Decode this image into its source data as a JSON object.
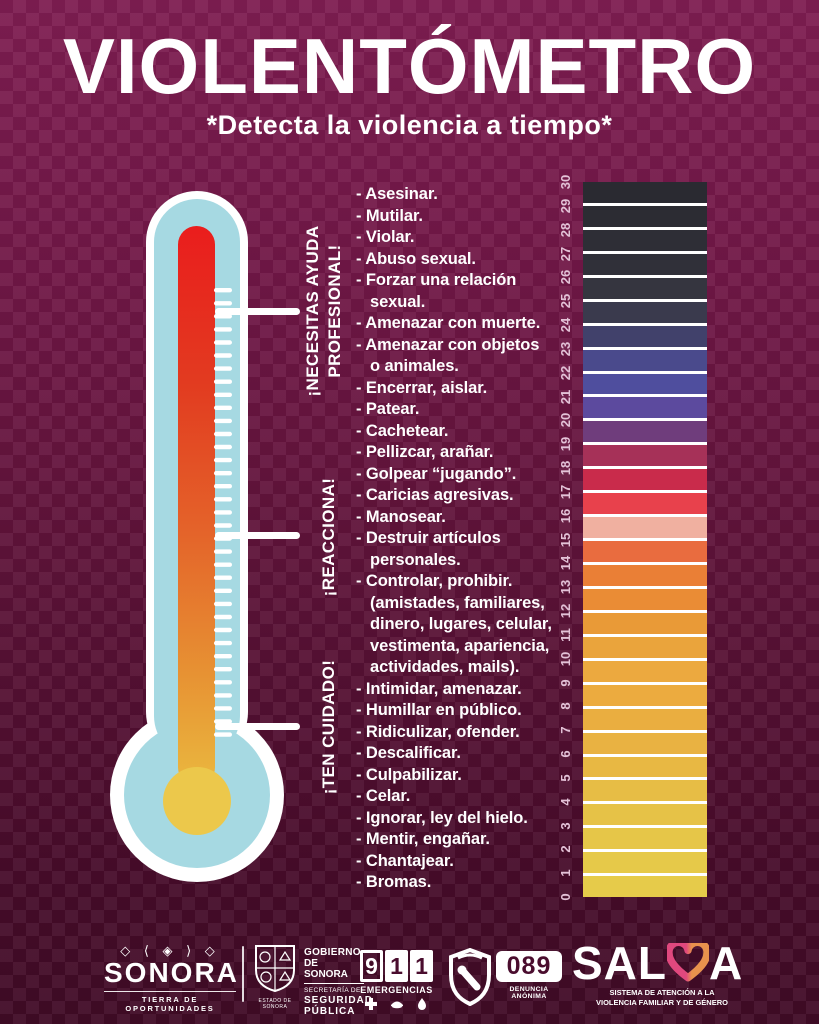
{
  "title": "VIOLENTÓMETRO",
  "subtitle": "*Detecta la violencia a tiempo*",
  "zones": [
    {
      "label_lines": [
        "¡NECESITAS AYUDA",
        "PROFESIONAL!"
      ]
    },
    {
      "label_lines": [
        "¡REACCIONA!"
      ]
    },
    {
      "label_lines": [
        "¡TEN CUIDADO!"
      ]
    }
  ],
  "behaviors": [
    [
      "- Asesinar."
    ],
    [
      "- Mutilar."
    ],
    [
      "- Violar."
    ],
    [
      "- Abuso sexual."
    ],
    [
      "- Forzar una relación",
      "sexual."
    ],
    [
      "- Amenazar con muerte."
    ],
    [
      "- Amenazar con objetos",
      "o animales."
    ],
    [
      "- Encerrar, aislar."
    ],
    [
      "- Patear."
    ],
    [
      "- Cachetear."
    ],
    [
      "- Pellizcar, arañar."
    ],
    [
      "- Golpear “jugando”."
    ],
    [
      "- Caricias agresivas."
    ],
    [
      "- Manosear."
    ],
    [
      "- Destruir artículos",
      "personales."
    ],
    [
      "- Controlar, prohibir.",
      "(amistades, familiares,",
      "dinero, lugares, celular,",
      "vestimenta, apariencia,",
      "actividades, mails)."
    ],
    [
      "- Intimidar, amenazar."
    ],
    [
      "- Humillar en público."
    ],
    [
      "- Ridiculizar, ofender."
    ],
    [
      "- Descalificar."
    ],
    [
      "- Culpabilizar."
    ],
    [
      "- Celar."
    ],
    [
      "- Ignorar, ley del hielo."
    ],
    [
      "- Mentir, engañar."
    ],
    [
      "- Chantajear."
    ],
    [
      "- Bromas."
    ]
  ],
  "scale": {
    "min": 0,
    "max": 30,
    "numbers": [
      "0",
      "1",
      "2",
      "3",
      "4",
      "5",
      "6",
      "7",
      "8",
      "9",
      "10",
      "11",
      "12",
      "13",
      "14",
      "15",
      "16",
      "17",
      "18",
      "19",
      "20",
      "21",
      "22",
      "23",
      "24",
      "25",
      "26",
      "27",
      "28",
      "29",
      "30"
    ],
    "segment_colors_bottom_to_top": [
      "#e6cb4a",
      "#e6c949",
      "#e6c648",
      "#e6c247",
      "#e7bd45",
      "#e8b843",
      "#e9b242",
      "#eaae40",
      "#ecab3f",
      "#eca93f",
      "#eaa43c",
      "#e99a37",
      "#ea8c35",
      "#ea7f36",
      "#e96c3f",
      "#f0b0a0",
      "#e8414c",
      "#c92b4b",
      "#a63158",
      "#6f3d7c",
      "#5c4a9e",
      "#4f4e9e",
      "#4a4a8c",
      "#41416b",
      "#3a3a4d",
      "#35353f",
      "#303039",
      "#2e2e36",
      "#2c2c33",
      "#2a2a31"
    ]
  },
  "thermometer_colors": {
    "tube": "#a6d9e2",
    "liquid_top": "#ea1d1d",
    "liquid_bottom": "#eab83f",
    "bulb": "#ecc84b",
    "outline": "#ffffff"
  },
  "colors": {
    "background_top": "#7e1d51",
    "background_bottom": "#400b26",
    "text": "#ffffff",
    "scale_number_color": "#e3c2d7",
    "salva_heart_pink": "#e0487e",
    "salva_heart_orange": "#e8924d"
  },
  "footer": {
    "sonora": {
      "glyphs": "◇ ⟨ ◈ ⟩ ◇",
      "name": "SONORA",
      "tagline": "TIERRA DE OPORTUNIDADES"
    },
    "gobierno": {
      "seal_caption": "ESTADO DE SONORA",
      "line1": "GOBIERNO",
      "line2": "DE SONORA",
      "line3": "SECRETARÍA DE",
      "line4": "SEGURIDAD",
      "line5": "PÚBLICA"
    },
    "emergency911": {
      "digits": [
        "9",
        "1",
        "1"
      ],
      "label": "EMERGENCIAS"
    },
    "anonymous089": {
      "number": "089",
      "label": "DENUNCIA ANÓNIMA"
    },
    "salva": {
      "name_prefix": "SAL",
      "name_suffix": "A",
      "tagline_line1": "SISTEMA DE ATENCIÓN A LA",
      "tagline_line2": "VIOLENCIA FAMILIAR Y DE GÉNERO"
    }
  }
}
